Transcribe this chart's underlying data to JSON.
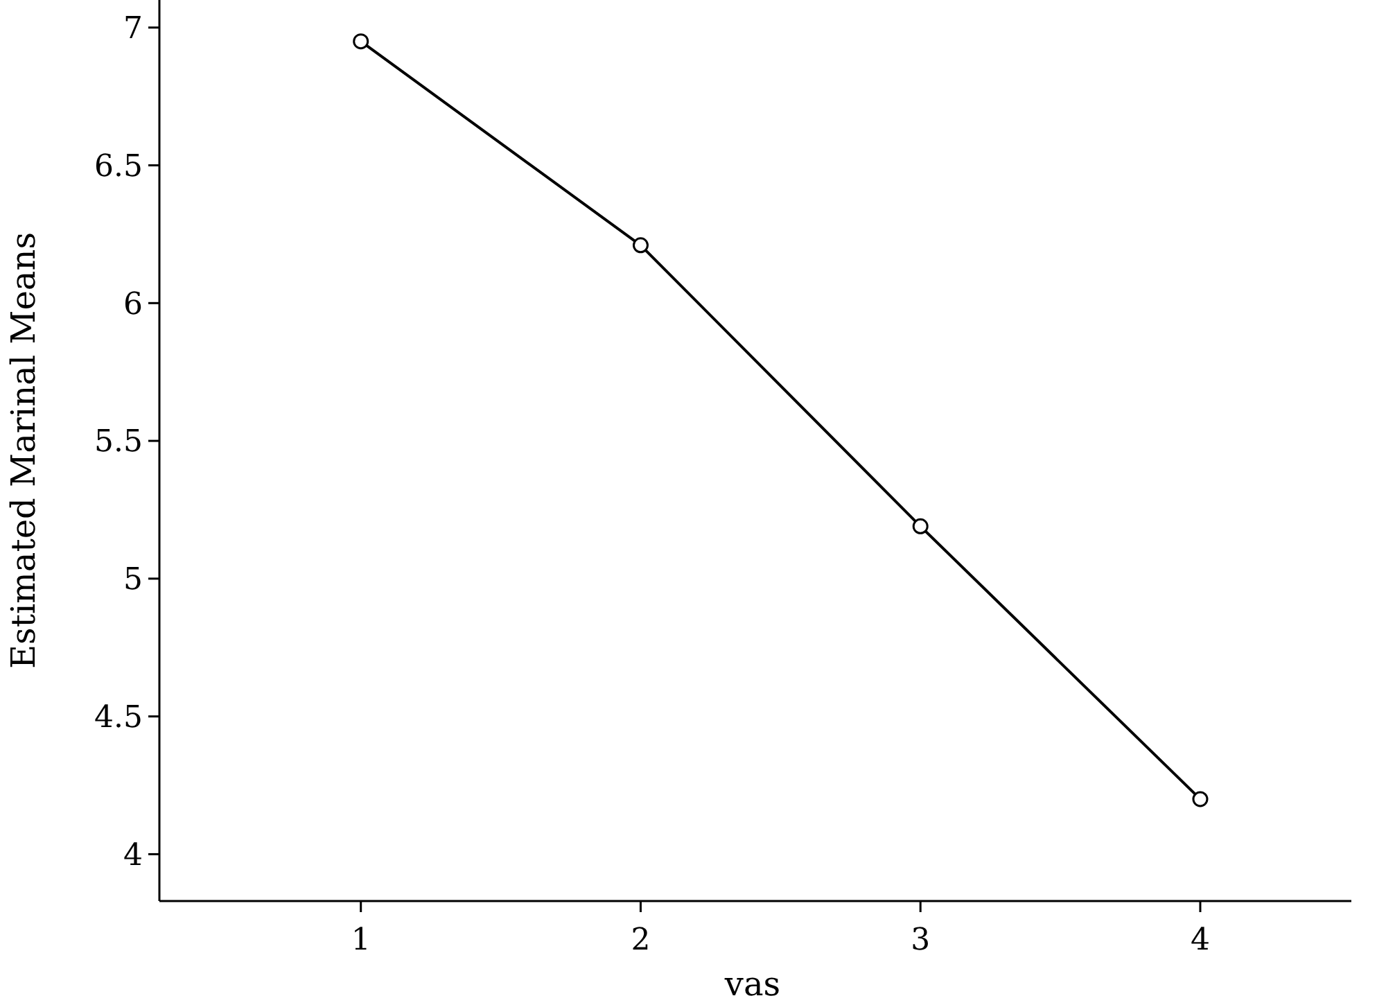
{
  "chart_data": {
    "type": "line",
    "xlabel": "vas",
    "ylabel": "Estimated Marinal Means",
    "x": [
      1,
      2,
      3,
      4
    ],
    "series": [
      {
        "color": "#000000",
        "values": [
          6.95,
          6.21,
          5.19,
          4.2
        ]
      }
    ],
    "xlim": [
      0.28,
      4.54
    ],
    "xticks": [
      1,
      2,
      3,
      4
    ],
    "ylim": [
      3.83,
      7.1
    ],
    "yticks": [
      4,
      {
        "value": 4.5,
        "label": "4.5"
      },
      5,
      {
        "value": 5.5,
        "label": "5.5"
      },
      6,
      {
        "value": 6.5,
        "label": "6.5"
      },
      7
    ],
    "marker": "circle",
    "line_style": "solid"
  }
}
